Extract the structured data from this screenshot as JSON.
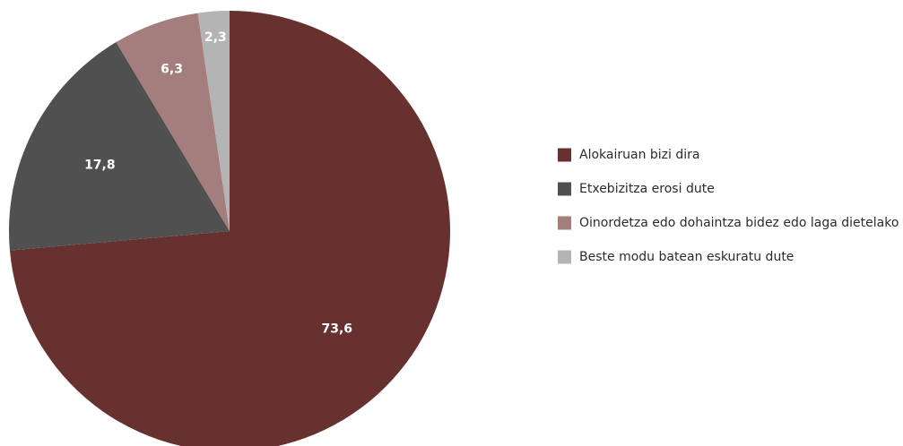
{
  "chart_data": {
    "type": "pie",
    "title": "",
    "categories": [
      "Alokairuan bizi dira",
      "Etxebizitza erosi dute",
      "Oinordetza edo dohaintza bidez edo laga dietelako",
      "Beste modu batean eskuratu dute"
    ],
    "values": [
      73.6,
      17.8,
      6.3,
      2.3
    ],
    "value_labels": [
      "73,6",
      "17,8",
      "6,3",
      "2,3"
    ],
    "colors": [
      "#673130",
      "#505050",
      "#a47e7d",
      "#b4b4b4"
    ],
    "start_angle": "12 o'clock",
    "direction": "clockwise",
    "legend_position": "right"
  }
}
